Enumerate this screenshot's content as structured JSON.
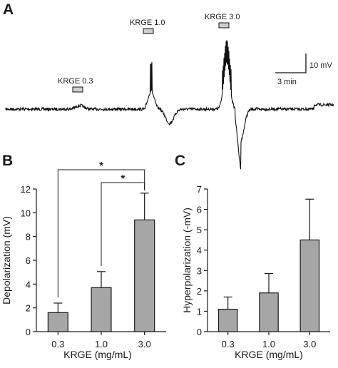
{
  "chart_data": [
    {
      "panel": "A",
      "type": "line",
      "annotations": [
        "KRGE 0.3",
        "KRGE 1.0",
        "KRGE 3.0"
      ],
      "scale_bar": {
        "vertical": "10 mV",
        "horizontal": "3 min"
      }
    },
    {
      "panel": "B",
      "type": "bar",
      "categories": [
        "0.3",
        "1.0",
        "3.0"
      ],
      "values": [
        1.6,
        3.7,
        9.4
      ],
      "errors": [
        0.8,
        1.35,
        2.25
      ],
      "xlabel": "KRGE (mg/mL)",
      "ylabel": "Depolarization (mV)",
      "ylim": [
        0,
        12
      ],
      "yticks": [
        "0",
        "2",
        "4",
        "6",
        "8",
        "10",
        "12"
      ],
      "significance": [
        {
          "from": "0.3",
          "to": "3.0",
          "label": "*"
        },
        {
          "from": "1.0",
          "to": "3.0",
          "label": "*"
        }
      ]
    },
    {
      "panel": "C",
      "type": "bar",
      "categories": [
        "0.3",
        "1.0",
        "3.0"
      ],
      "values": [
        1.1,
        1.9,
        4.5
      ],
      "errors": [
        0.6,
        0.95,
        2.0
      ],
      "xlabel": "KRGE (mg/mL)",
      "ylabel": "Hyperpolarization (-mV)",
      "ylim": [
        0,
        7
      ],
      "yticks": [
        "0",
        "1",
        "2",
        "3",
        "4",
        "5",
        "6",
        "7"
      ]
    }
  ],
  "colors": {
    "bar_fill": "#a6a6a6",
    "stroke": "#1a1a1a"
  }
}
